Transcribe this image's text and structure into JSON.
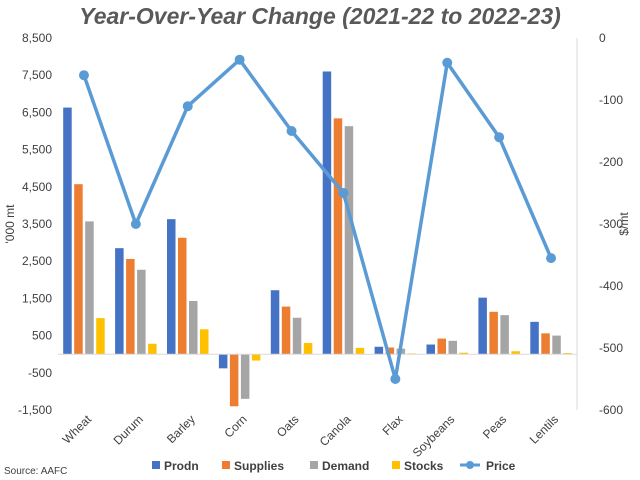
{
  "chart_data": {
    "type": "bar",
    "title": "Year-Over-Year Change (2021-22 to 2022-23)",
    "source": "Source: AAFC",
    "ylabel": "'000 mt",
    "y2label": "$/mt",
    "ylim": [
      -1500,
      8500
    ],
    "y2lim": [
      -600,
      0
    ],
    "yticks": [
      "-1,500",
      "-500",
      "500",
      "1,500",
      "2,500",
      "3,500",
      "4,500",
      "5,500",
      "6,500",
      "7,500",
      "8,500"
    ],
    "y2ticks": [
      "-600",
      "-500",
      "-400",
      "-300",
      "-200",
      "-100",
      "0"
    ],
    "categories": [
      "Wheat",
      "Durum",
      "Barley",
      "Corn",
      "Oats",
      "Canola",
      "Flax",
      "Soybeans",
      "Peas",
      "Lentils"
    ],
    "series": [
      {
        "name": "Prodn",
        "color": "#4472C4",
        "values": [
          6630,
          2850,
          3630,
          -380,
          1720,
          7600,
          200,
          260,
          1520,
          870
        ]
      },
      {
        "name": "Supplies",
        "color": "#ED7D31",
        "values": [
          4570,
          2560,
          3130,
          -1400,
          1280,
          6340,
          180,
          420,
          1140,
          560
        ]
      },
      {
        "name": "Demand",
        "color": "#A5A5A5",
        "values": [
          3570,
          2270,
          1430,
          -1200,
          980,
          6130,
          150,
          360,
          1050,
          500
        ]
      },
      {
        "name": "Stocks",
        "color": "#FFC000",
        "values": [
          970,
          280,
          670,
          -170,
          300,
          170,
          20,
          40,
          80,
          30
        ]
      }
    ],
    "line_series": {
      "name": "Price",
      "color": "#5B9BD5",
      "axis": "right",
      "values": [
        -60,
        -300,
        -110,
        -35,
        -150,
        -250,
        -550,
        -40,
        -160,
        -355
      ]
    },
    "legend_position": "bottom",
    "grid": false
  }
}
